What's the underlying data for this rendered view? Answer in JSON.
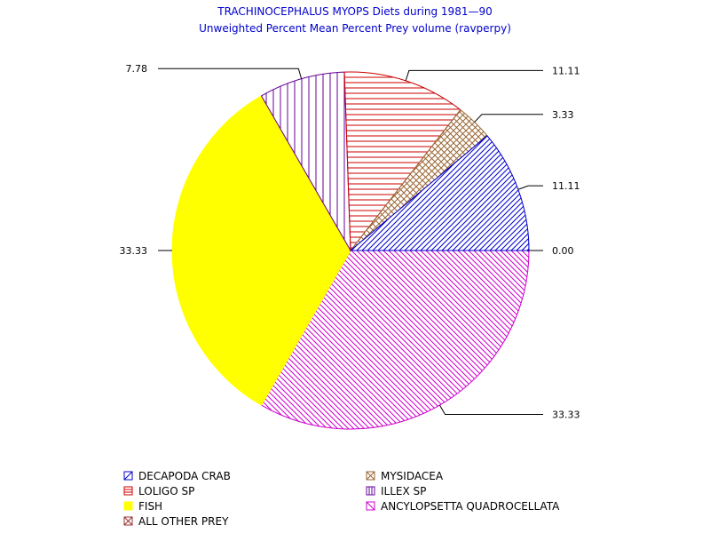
{
  "chart_data": {
    "type": "pie",
    "title": "TRACHINOCEPHALUS MYOPS Diets during 1981—90",
    "subtitle": "Unweighted Percent Mean Percent Prey  volume (ravperpy)",
    "slices": [
      {
        "name": "ANCYLOPSETTA QUADROCELLATA",
        "value": 33.33,
        "label": "33.33",
        "color": "#cc00cc",
        "pattern": "diag-down"
      },
      {
        "name": "FISH",
        "value": 33.33,
        "label": "33.33",
        "color": "#ffff00",
        "pattern": "solid"
      },
      {
        "name": "ILLEX SP",
        "value": 7.78,
        "label": "7.78",
        "color": "#660099",
        "pattern": "vertical"
      },
      {
        "name": "LOLIGO SP",
        "value": 11.11,
        "label": "11.11",
        "color": "#cc0000",
        "pattern": "horizontal"
      },
      {
        "name": "MYSIDACEA",
        "value": 3.33,
        "label": "3.33",
        "color": "#996633",
        "pattern": "crosshatch"
      },
      {
        "name": "DECAPODA CRAB",
        "value": 11.11,
        "label": "11.11",
        "color": "#0000cc",
        "pattern": "diag-up"
      },
      {
        "name": "ALL OTHER PREY",
        "value": 0.0,
        "label": "0.00",
        "color": "#993333",
        "pattern": "x-cross"
      }
    ],
    "legend": [
      {
        "name": "DECAPODA CRAB",
        "color": "#0000cc",
        "pattern": "diag-up"
      },
      {
        "name": "MYSIDACEA",
        "color": "#996633",
        "pattern": "crosshatch"
      },
      {
        "name": "LOLIGO SP",
        "color": "#cc0000",
        "pattern": "horizontal"
      },
      {
        "name": "ILLEX SP",
        "color": "#660099",
        "pattern": "vertical"
      },
      {
        "name": "FISH",
        "color": "#ffff00",
        "pattern": "solid"
      },
      {
        "name": "ANCYLOPSETTA QUADROCELLATA",
        "color": "#cc00cc",
        "pattern": "diag-down"
      },
      {
        "name": "ALL OTHER PREY",
        "color": "#993333",
        "pattern": "x-cross"
      }
    ],
    "legend_position": "bottom"
  }
}
